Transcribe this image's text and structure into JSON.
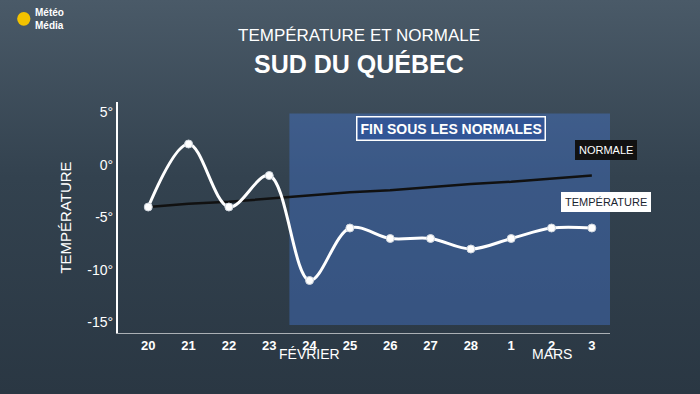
{
  "chart_data": {
    "type": "line",
    "logo": [
      "Météo",
      "Média"
    ],
    "subtitle": "TEMPÉRATURE ET NORMALE",
    "title": "SUD DU QUÉBEC",
    "y_label": "TEMPÉRATURE",
    "categories": [
      "20",
      "21",
      "22",
      "23",
      "24",
      "25",
      "26",
      "27",
      "28",
      "1",
      "2",
      "3"
    ],
    "x_groups": [
      {
        "label": "FÉVRIER",
        "from": "20",
        "to": "28"
      },
      {
        "label": "MARS",
        "from": "1",
        "to": "3"
      }
    ],
    "series": [
      {
        "name": "NORMALE",
        "color": "#111111",
        "marker": "none",
        "line_style": "solid",
        "values": [
          -4,
          -3.7,
          -3.5,
          -3.2,
          -2.9,
          -2.6,
          -2.4,
          -2.1,
          -1.8,
          -1.6,
          -1.3,
          -1
        ]
      },
      {
        "name": "TEMPÉRATURE",
        "color": "#ffffff",
        "marker": "circle",
        "line_style": "smooth",
        "values": [
          -4,
          2,
          -4,
          -1,
          -11,
          -6,
          -7,
          -7,
          -8,
          -7,
          -6,
          -6
        ]
      }
    ],
    "annotations": [
      {
        "text": "FIN SOUS LES NORMALES",
        "from": "24",
        "to": "3"
      }
    ],
    "ylim": [
      -16,
      6
    ],
    "yticks": [
      {
        "value": 5,
        "label": "5°"
      },
      {
        "value": 0,
        "label": "0°"
      },
      {
        "value": -5,
        "label": "-5°"
      },
      {
        "value": -10,
        "label": "-10°"
      },
      {
        "value": -15,
        "label": "-15°"
      }
    ],
    "grid": false
  }
}
